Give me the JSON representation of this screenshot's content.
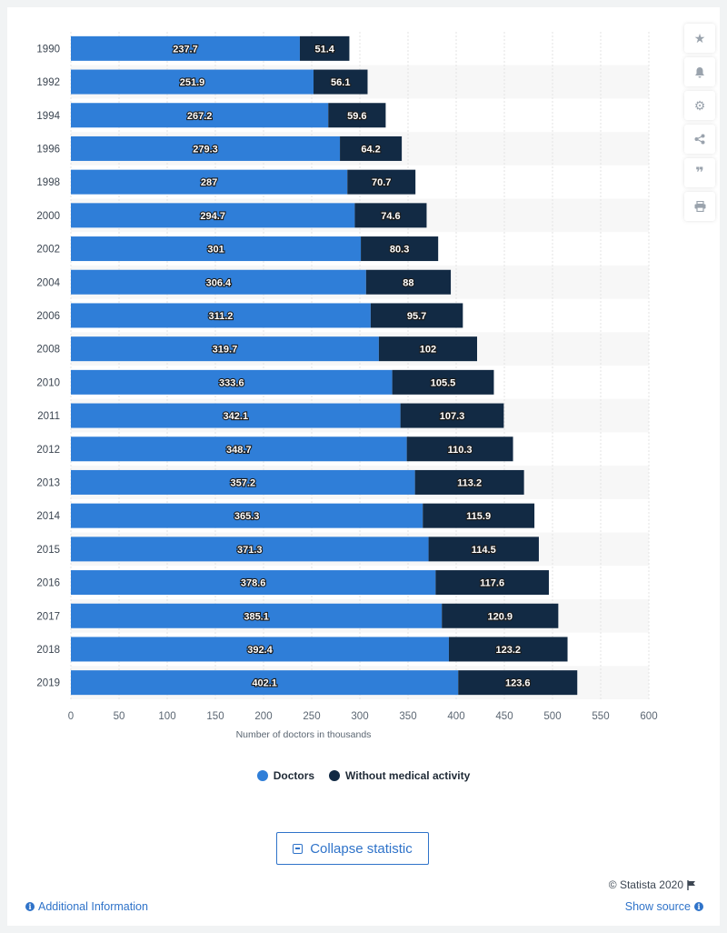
{
  "chart_data": {
    "type": "bar",
    "orientation": "horizontal",
    "stacked": true,
    "categories": [
      "1990",
      "1992",
      "1994",
      "1996",
      "1998",
      "2000",
      "2002",
      "2004",
      "2006",
      "2008",
      "2010",
      "2011",
      "2012",
      "2013",
      "2014",
      "2015",
      "2016",
      "2017",
      "2018",
      "2019"
    ],
    "series": [
      {
        "name": "Doctors",
        "color": "#2f7ed8",
        "values": [
          237.7,
          251.9,
          267.2,
          279.3,
          287,
          294.7,
          301,
          306.4,
          311.2,
          319.7,
          333.6,
          342.1,
          348.7,
          357.2,
          365.3,
          371.3,
          378.6,
          385.1,
          392.4,
          402.1
        ]
      },
      {
        "name": "Without medical activity",
        "color": "#122a44",
        "values": [
          51.4,
          56.1,
          59.6,
          64.2,
          70.7,
          74.6,
          80.3,
          88,
          95.7,
          102,
          105.5,
          107.3,
          110.3,
          113.2,
          115.9,
          114.5,
          117.6,
          120.9,
          123.2,
          123.6
        ]
      }
    ],
    "xlabel": "Number of doctors in thousands",
    "xlim": [
      0,
      600
    ],
    "xticks": [
      0,
      50,
      100,
      150,
      200,
      250,
      300,
      350,
      400,
      450,
      500,
      550,
      600
    ],
    "grid": true,
    "legend": "bottom-center"
  },
  "legend": {
    "doctors": "Doctors",
    "without": "Without medical activity"
  },
  "tools": [
    "star-icon",
    "bell-icon",
    "gear-icon",
    "share-icon",
    "quote-icon",
    "print-icon"
  ],
  "collapse_label": "Collapse statistic",
  "credit": "© Statista 2020",
  "additional_info": "Additional Information",
  "show_source": "Show source"
}
